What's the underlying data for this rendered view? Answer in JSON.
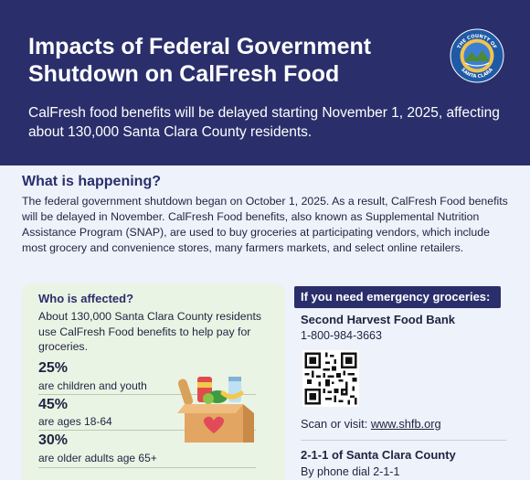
{
  "header": {
    "title_line1": "Impacts of Federal Government",
    "title_line2": "Shutdown on CalFresh Food",
    "subtitle": "CalFresh food benefits will be delayed starting November 1, 2025, affecting about 130,000 Santa Clara County residents.",
    "seal_text": "THE COUNTY OF SANTA CLARA",
    "seal_icon": "county-seal-icon",
    "colors": {
      "navy": "#2a2f6b",
      "light_panel": "#eef2fa",
      "green_panel": "#eaf4e4"
    }
  },
  "what": {
    "heading": "What is happening?",
    "text": "The federal government shutdown began on October 1, 2025. As a result, CalFresh Food benefits will be delayed in November. CalFresh Food benefits, also known as Supplemental Nutrition Assistance Program (SNAP), are used to buy groceries at participating vendors, which include most grocery and convenience stores, many farmers markets, and select online retailers."
  },
  "affected": {
    "heading": "Who is affected?",
    "text": "About 130,000 Santa Clara County residents use CalFresh Food benefits to help pay for groceries.",
    "stats": [
      {
        "value": "25%",
        "label": "are children and youth"
      },
      {
        "value": "45%",
        "label": "are ages 18-64"
      },
      {
        "value": "30%",
        "label": "are older adults age 65+"
      }
    ],
    "illustration_icon": "grocery-box-icon"
  },
  "emergency": {
    "badge": "If you need emergency groceries:",
    "org_name": "Second Harvest Food Bank",
    "phone": "1-800-984-3663",
    "qr_icon": "qr-code-icon",
    "scan_prefix": "Scan or visit: ",
    "scan_link": "www.shfb.org",
    "org2_name": "2-1-1 of Santa Clara County",
    "org2_text": "By phone dial 2-1-1"
  }
}
